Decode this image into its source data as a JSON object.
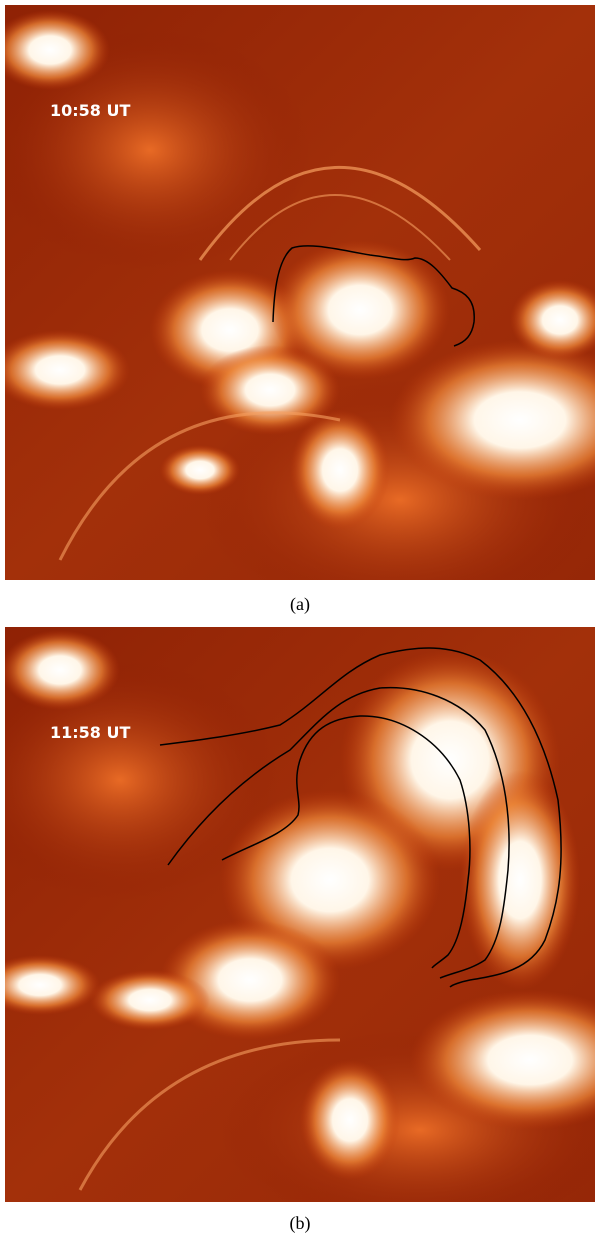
{
  "panels": [
    {
      "timestamp": "10:58 UT",
      "caption": "(a)"
    },
    {
      "timestamp": "11:58 UT",
      "caption": "(b)"
    }
  ]
}
